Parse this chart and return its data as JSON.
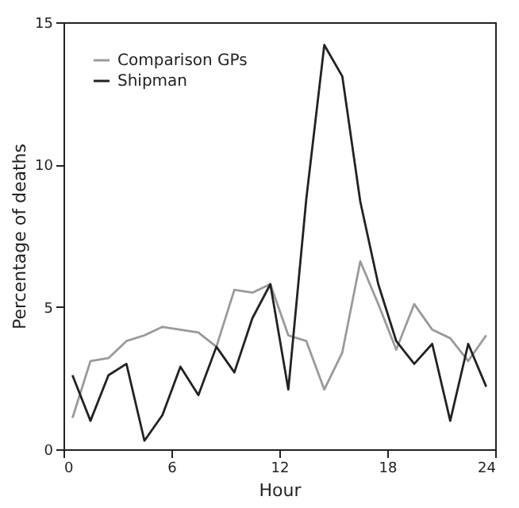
{
  "chart_data": {
    "type": "line",
    "xlabel": "Hour",
    "ylabel": "Percentage of deaths",
    "x": [
      0.5,
      1.5,
      2.5,
      3.5,
      4.5,
      5.5,
      6.5,
      7.5,
      8.5,
      9.5,
      10.5,
      11.5,
      12.5,
      13.5,
      14.5,
      15.5,
      16.5,
      17.5,
      18.5,
      19.5,
      20.5,
      21.5,
      22.5,
      23.5
    ],
    "series": [
      {
        "name": "Comparison GPs",
        "color": "#9a9a9a",
        "values": [
          1.1,
          3.1,
          3.2,
          3.8,
          4.0,
          4.3,
          4.2,
          4.1,
          3.6,
          5.6,
          5.5,
          5.8,
          4.0,
          3.8,
          2.1,
          3.4,
          6.6,
          5.1,
          3.5,
          5.1,
          4.2,
          3.9,
          3.1,
          4.0
        ]
      },
      {
        "name": "Shipman",
        "color": "#222222",
        "values": [
          2.6,
          1.0,
          2.6,
          3.0,
          0.3,
          1.2,
          2.9,
          1.9,
          3.6,
          2.7,
          4.6,
          5.8,
          2.1,
          8.8,
          14.2,
          13.1,
          8.7,
          5.8,
          3.8,
          3.0,
          3.7,
          1.0,
          3.7,
          2.2
        ]
      }
    ],
    "xlim": [
      0,
      24
    ],
    "xticks": [
      0,
      6,
      12,
      18,
      24
    ],
    "ylim": [
      0,
      15
    ],
    "yticks": [
      0,
      5,
      10,
      15
    ],
    "legend": "top left",
    "grid": false,
    "marker": "none",
    "line_style": "solid"
  }
}
